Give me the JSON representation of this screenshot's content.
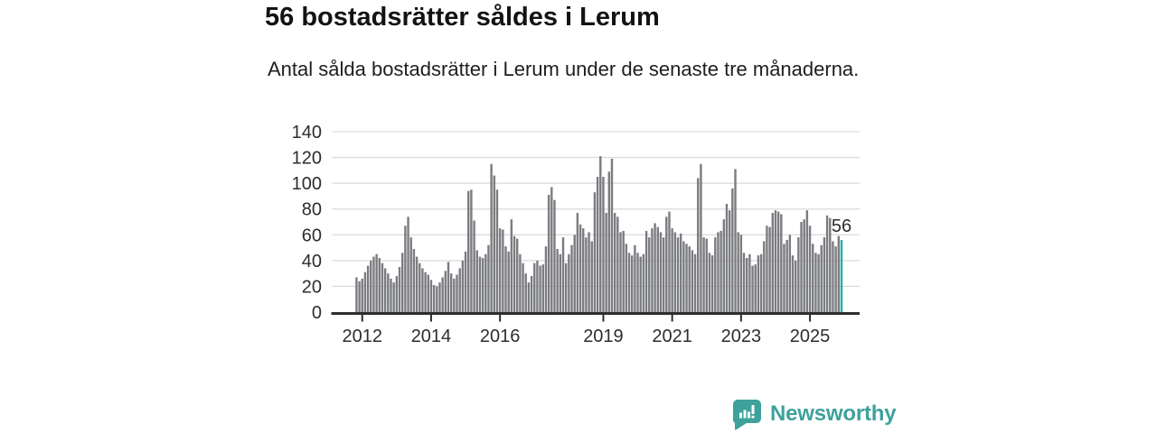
{
  "header": {
    "title": "56 bostadsrätter såldes i Lerum",
    "subtitle": "Antal sålda bostadsrätter i Lerum under de senaste tre månaderna."
  },
  "chart_data": {
    "type": "bar",
    "title": "56 bostadsrätter såldes i Lerum",
    "subtitle": "Antal sålda bostadsrätter i Lerum under de senaste tre månaderna.",
    "frequency": "monthly",
    "x_start": "2011-11",
    "x_end": "2025-12",
    "values": [
      27,
      24,
      26,
      31,
      36,
      40,
      43,
      45,
      42,
      38,
      34,
      30,
      26,
      23,
      28,
      35,
      46,
      67,
      74,
      58,
      49,
      43,
      38,
      34,
      31,
      29,
      25,
      21,
      20,
      23,
      27,
      32,
      39,
      30,
      26,
      29,
      34,
      40,
      47,
      94,
      95,
      71,
      48,
      43,
      42,
      45,
      52,
      115,
      106,
      95,
      65,
      64,
      51,
      47,
      72,
      59,
      57,
      45,
      38,
      30,
      23,
      28,
      38,
      40,
      36,
      37,
      51,
      91,
      97,
      87,
      49,
      45,
      58,
      38,
      45,
      52,
      60,
      77,
      68,
      65,
      58,
      62,
      55,
      93,
      105,
      121,
      105,
      77,
      109,
      119,
      77,
      74,
      62,
      63,
      53,
      46,
      44,
      52,
      46,
      43,
      45,
      63,
      58,
      65,
      69,
      66,
      62,
      58,
      74,
      78,
      65,
      62,
      58,
      61,
      55,
      53,
      51,
      48,
      45,
      104,
      115,
      58,
      57,
      46,
      44,
      58,
      62,
      63,
      72,
      84,
      79,
      96,
      111,
      62,
      60,
      46,
      42,
      45,
      36,
      37,
      44,
      45,
      55,
      67,
      66,
      77,
      79,
      78,
      76,
      53,
      56,
      60,
      44,
      40,
      58,
      70,
      72,
      79,
      67,
      53,
      46,
      45,
      52,
      58,
      75,
      73,
      55,
      51,
      59,
      56
    ],
    "highlight_last": true,
    "highlight_label": "56",
    "ylim": [
      0,
      140
    ],
    "yticks": [
      0,
      20,
      40,
      60,
      80,
      100,
      120,
      140
    ],
    "xticks": [
      2012,
      2014,
      2016,
      2019,
      2021,
      2023,
      2025
    ],
    "grid": true,
    "legend_position": "none",
    "xlabel": "",
    "ylabel": "",
    "bar_color": "#7b7c80",
    "highlight_color": "#1fafa8",
    "grid_color": "#dadada",
    "axis_color": "#2d2d2d",
    "tick_label_color": "#2d2d2d"
  },
  "footer": {
    "brand": "Newsworthy",
    "brand_color": "#3ea29b",
    "logo_icon": "speech-bubble-bar-chart-icon"
  }
}
